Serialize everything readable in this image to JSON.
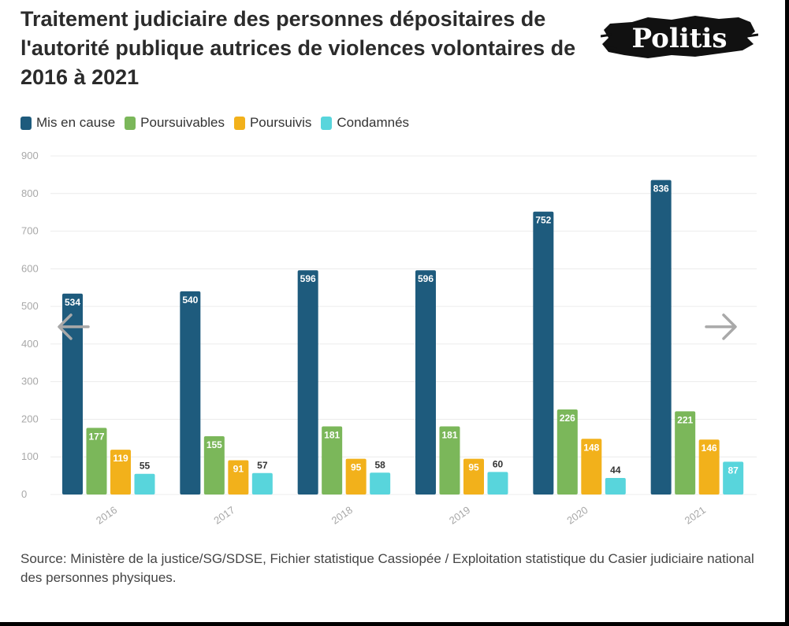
{
  "title": "Traitement judiciaire des personnes dépositaires de l'autorité publique autrices de violences volontaires de 2016 à 2021",
  "logo": {
    "text": "Politis",
    "icon": "politis-logo"
  },
  "colors": {
    "mis_en_cause": "#1e5b7d",
    "poursuivables": "#7bb75a",
    "poursuivis": "#f2b11b",
    "condamnes": "#58d5dc",
    "grid": "#ececec",
    "axis_text": "#a8a8a8"
  },
  "navigation": {
    "prev_icon": "arrow-left-icon",
    "next_icon": "arrow-right-icon"
  },
  "chart_data": {
    "type": "bar",
    "categories": [
      "2016",
      "2017",
      "2018",
      "2019",
      "2020",
      "2021"
    ],
    "series": [
      {
        "name": "Mis en cause",
        "values": [
          534,
          540,
          596,
          596,
          752,
          836
        ]
      },
      {
        "name": "Poursuivables",
        "values": [
          177,
          155,
          181,
          181,
          226,
          221
        ]
      },
      {
        "name": "Poursuivis",
        "values": [
          119,
          91,
          95,
          95,
          148,
          146
        ]
      },
      {
        "name": "Condamnés",
        "values": [
          55,
          57,
          58,
          60,
          44,
          87
        ]
      }
    ],
    "yticks": [
      "0",
      "100",
      "200",
      "300",
      "400",
      "500",
      "600",
      "700",
      "800",
      "900"
    ],
    "ylim": [
      0,
      900
    ],
    "grid": true,
    "legend": "top-left"
  },
  "source": "Source: Ministère de la justice/SG/SDSE, Fichier statistique Cassiopée / Exploitation statistique du Casier judiciaire national des personnes physiques."
}
